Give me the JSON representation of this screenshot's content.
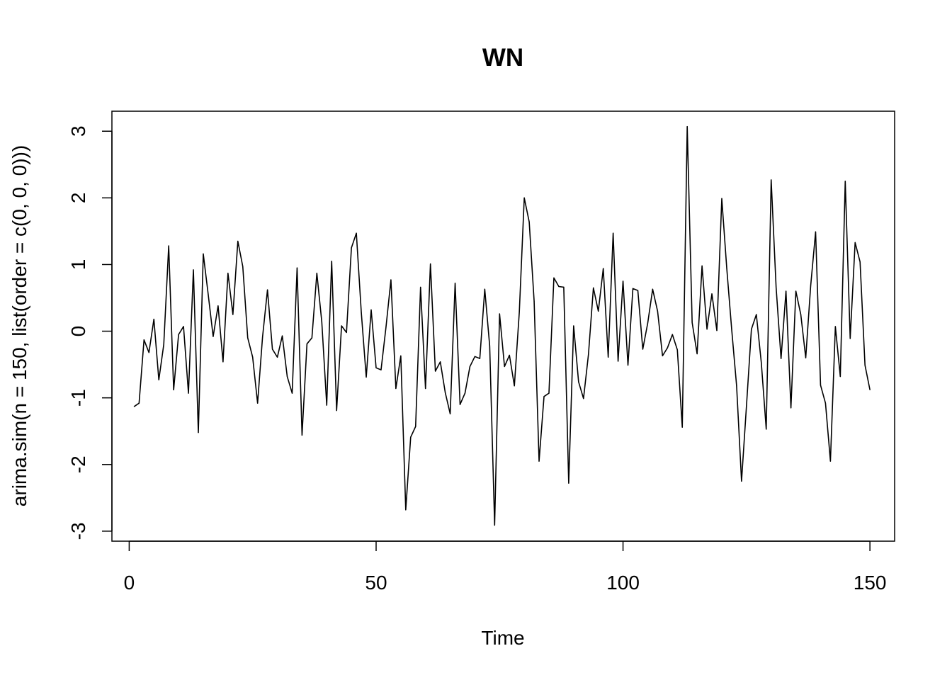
{
  "chart_data": {
    "type": "line",
    "title": "WN",
    "xlabel": "Time",
    "ylabel": "arima.sim(n = 150, list(order = c(0, 0, 0)))",
    "xlim": [
      -3.5,
      155
    ],
    "ylim": [
      -3.15,
      3.3
    ],
    "x_ticks": [
      0,
      50,
      100,
      150
    ],
    "x_tick_labels": [
      "0",
      "50",
      "100",
      "150"
    ],
    "y_ticks": [
      -3,
      -2,
      -1,
      0,
      1,
      2,
      3
    ],
    "y_tick_labels": [
      "-3",
      "-2",
      "-1",
      "0",
      "1",
      "2",
      "3"
    ],
    "grid": false,
    "legend": "none",
    "line_color": "#000000",
    "x": [
      1,
      2,
      3,
      4,
      5,
      6,
      7,
      8,
      9,
      10,
      11,
      12,
      13,
      14,
      15,
      16,
      17,
      18,
      19,
      20,
      21,
      22,
      23,
      24,
      25,
      26,
      27,
      28,
      29,
      30,
      31,
      32,
      33,
      34,
      35,
      36,
      37,
      38,
      39,
      40,
      41,
      42,
      43,
      44,
      45,
      46,
      47,
      48,
      49,
      50,
      51,
      52,
      53,
      54,
      55,
      56,
      57,
      58,
      59,
      60,
      61,
      62,
      63,
      64,
      65,
      66,
      67,
      68,
      69,
      70,
      71,
      72,
      73,
      74,
      75,
      76,
      77,
      78,
      79,
      80,
      81,
      82,
      83,
      84,
      85,
      86,
      87,
      88,
      89,
      90,
      91,
      92,
      93,
      94,
      95,
      96,
      97,
      98,
      99,
      100,
      101,
      102,
      103,
      104,
      105,
      106,
      107,
      108,
      109,
      110,
      111,
      112,
      113,
      114,
      115,
      116,
      117,
      118,
      119,
      120,
      121,
      122,
      123,
      124,
      125,
      126,
      127,
      128,
      129,
      130,
      131,
      132,
      133,
      134,
      135,
      136,
      137,
      138,
      139,
      140,
      141,
      142,
      143,
      144,
      145,
      146,
      147,
      148,
      149,
      150
    ],
    "y": [
      -1.13,
      -1.08,
      -0.13,
      -0.32,
      0.18,
      -0.73,
      -0.2,
      1.28,
      -0.88,
      -0.05,
      0.07,
      -0.93,
      0.92,
      -1.52,
      1.16,
      0.55,
      -0.08,
      0.38,
      -0.46,
      0.87,
      0.25,
      1.35,
      0.97,
      -0.1,
      -0.39,
      -1.08,
      -0.09,
      0.62,
      -0.27,
      -0.39,
      -0.07,
      -0.68,
      -0.93,
      0.95,
      -1.56,
      -0.19,
      -0.1,
      0.87,
      0.14,
      -1.11,
      1.05,
      -1.19,
      0.08,
      -0.02,
      1.25,
      1.47,
      0.28,
      -0.69,
      0.32,
      -0.55,
      -0.58,
      0.06,
      0.77,
      -0.86,
      -0.37,
      -2.68,
      -1.59,
      -1.43,
      0.66,
      -0.86,
      1.01,
      -0.6,
      -0.46,
      -0.92,
      -1.24,
      0.72,
      -1.1,
      -0.93,
      -0.53,
      -0.38,
      -0.41,
      0.63,
      -0.22,
      -2.91,
      0.26,
      -0.53,
      -0.36,
      -0.82,
      0.29,
      2.0,
      1.64,
      0.45,
      -1.95,
      -0.98,
      -0.93,
      0.8,
      0.67,
      0.66,
      -2.28,
      0.08,
      -0.76,
      -1.01,
      -0.35,
      0.65,
      0.3,
      0.94,
      -0.39,
      1.47,
      -0.45,
      0.75,
      -0.51,
      0.64,
      0.61,
      -0.27,
      0.12,
      0.63,
      0.3,
      -0.37,
      -0.25,
      -0.05,
      -0.28,
      -1.44,
      3.07,
      0.13,
      -0.34,
      0.98,
      0.03,
      0.56,
      0.01,
      1.99,
      0.95,
      0.03,
      -0.82,
      -2.25,
      -1.12,
      0.03,
      0.25,
      -0.47,
      -1.47,
      2.27,
      0.66,
      -0.41,
      0.6,
      -1.15,
      0.6,
      0.25,
      -0.4,
      0.68,
      1.49,
      -0.81,
      -1.08,
      -1.95,
      0.07,
      -0.68,
      2.25,
      -0.11,
      1.33,
      1.04,
      -0.51,
      -0.88
    ]
  }
}
